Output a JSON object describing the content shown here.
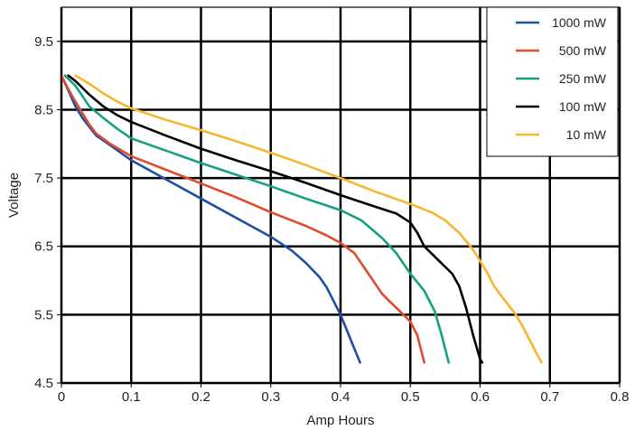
{
  "chart_data": {
    "type": "line",
    "xlabel": "Amp Hours",
    "ylabel": "Voltage",
    "xlim": [
      0,
      0.8
    ],
    "ylim": [
      4.5,
      10
    ],
    "x_ticks": [
      0,
      0.1,
      0.2,
      0.3,
      0.4,
      0.5,
      0.6,
      0.7,
      0.8
    ],
    "x_tick_labels": [
      "0",
      "0.1",
      "0.2",
      "0.3",
      "0.4",
      "0.5",
      "0.6",
      "0.7",
      "0.8"
    ],
    "y_ticks": [
      4.5,
      5.5,
      6.5,
      7.5,
      8.5,
      9.5
    ],
    "y_tick_labels": [
      "4.5",
      "5.5",
      "6.5",
      "7.5",
      "8.5",
      "9.5"
    ],
    "grid": true,
    "legend_position": "top-right",
    "series": [
      {
        "name": "1000 mW",
        "color": "#1f4fa0",
        "points": [
          [
            0.0,
            9.0
          ],
          [
            0.01,
            8.78
          ],
          [
            0.02,
            8.55
          ],
          [
            0.03,
            8.38
          ],
          [
            0.04,
            8.25
          ],
          [
            0.05,
            8.12
          ],
          [
            0.07,
            7.98
          ],
          [
            0.1,
            7.76
          ],
          [
            0.15,
            7.48
          ],
          [
            0.2,
            7.2
          ],
          [
            0.25,
            6.92
          ],
          [
            0.3,
            6.64
          ],
          [
            0.33,
            6.44
          ],
          [
            0.35,
            6.26
          ],
          [
            0.37,
            6.05
          ],
          [
            0.38,
            5.9
          ],
          [
            0.39,
            5.7
          ],
          [
            0.4,
            5.5
          ],
          [
            0.41,
            5.25
          ],
          [
            0.42,
            5.0
          ],
          [
            0.428,
            4.8
          ]
        ]
      },
      {
        "name": "500 mW",
        "color": "#e04b2f",
        "points": [
          [
            0.0,
            9.0
          ],
          [
            0.01,
            8.8
          ],
          [
            0.02,
            8.62
          ],
          [
            0.03,
            8.45
          ],
          [
            0.04,
            8.28
          ],
          [
            0.05,
            8.15
          ],
          [
            0.07,
            8.0
          ],
          [
            0.1,
            7.82
          ],
          [
            0.15,
            7.62
          ],
          [
            0.2,
            7.42
          ],
          [
            0.25,
            7.22
          ],
          [
            0.3,
            7.0
          ],
          [
            0.35,
            6.8
          ],
          [
            0.38,
            6.66
          ],
          [
            0.4,
            6.55
          ],
          [
            0.42,
            6.4
          ],
          [
            0.44,
            6.1
          ],
          [
            0.46,
            5.8
          ],
          [
            0.48,
            5.6
          ],
          [
            0.5,
            5.4
          ],
          [
            0.51,
            5.2
          ],
          [
            0.52,
            4.8
          ]
        ]
      },
      {
        "name": "250 mW",
        "color": "#16a082",
        "points": [
          [
            0.005,
            9.0
          ],
          [
            0.02,
            8.85
          ],
          [
            0.03,
            8.7
          ],
          [
            0.04,
            8.55
          ],
          [
            0.06,
            8.38
          ],
          [
            0.08,
            8.22
          ],
          [
            0.1,
            8.08
          ],
          [
            0.15,
            7.9
          ],
          [
            0.2,
            7.72
          ],
          [
            0.25,
            7.55
          ],
          [
            0.3,
            7.38
          ],
          [
            0.35,
            7.2
          ],
          [
            0.4,
            7.03
          ],
          [
            0.43,
            6.88
          ],
          [
            0.46,
            6.62
          ],
          [
            0.48,
            6.4
          ],
          [
            0.5,
            6.1
          ],
          [
            0.52,
            5.85
          ],
          [
            0.535,
            5.55
          ],
          [
            0.545,
            5.2
          ],
          [
            0.555,
            4.8
          ]
        ]
      },
      {
        "name": "100 mW",
        "color": "#000000",
        "points": [
          [
            0.01,
            9.0
          ],
          [
            0.02,
            8.92
          ],
          [
            0.04,
            8.72
          ],
          [
            0.06,
            8.55
          ],
          [
            0.08,
            8.42
          ],
          [
            0.1,
            8.32
          ],
          [
            0.15,
            8.12
          ],
          [
            0.2,
            7.93
          ],
          [
            0.25,
            7.76
          ],
          [
            0.3,
            7.6
          ],
          [
            0.35,
            7.43
          ],
          [
            0.4,
            7.25
          ],
          [
            0.45,
            7.08
          ],
          [
            0.48,
            6.98
          ],
          [
            0.5,
            6.85
          ],
          [
            0.51,
            6.7
          ],
          [
            0.52,
            6.5
          ],
          [
            0.54,
            6.3
          ],
          [
            0.56,
            6.1
          ],
          [
            0.57,
            5.92
          ],
          [
            0.58,
            5.6
          ],
          [
            0.59,
            5.2
          ],
          [
            0.6,
            4.85
          ],
          [
            0.603,
            4.8
          ]
        ]
      },
      {
        "name": "10 mW",
        "color": "#f7b62e",
        "points": [
          [
            0.02,
            9.0
          ],
          [
            0.04,
            8.88
          ],
          [
            0.06,
            8.74
          ],
          [
            0.08,
            8.62
          ],
          [
            0.1,
            8.52
          ],
          [
            0.15,
            8.35
          ],
          [
            0.2,
            8.2
          ],
          [
            0.25,
            8.04
          ],
          [
            0.3,
            7.87
          ],
          [
            0.35,
            7.69
          ],
          [
            0.4,
            7.5
          ],
          [
            0.45,
            7.3
          ],
          [
            0.5,
            7.12
          ],
          [
            0.53,
            7.0
          ],
          [
            0.55,
            6.88
          ],
          [
            0.57,
            6.7
          ],
          [
            0.59,
            6.45
          ],
          [
            0.61,
            6.12
          ],
          [
            0.62,
            5.92
          ],
          [
            0.63,
            5.78
          ],
          [
            0.65,
            5.52
          ],
          [
            0.66,
            5.35
          ],
          [
            0.67,
            5.15
          ],
          [
            0.68,
            4.95
          ],
          [
            0.688,
            4.8
          ]
        ]
      }
    ]
  }
}
